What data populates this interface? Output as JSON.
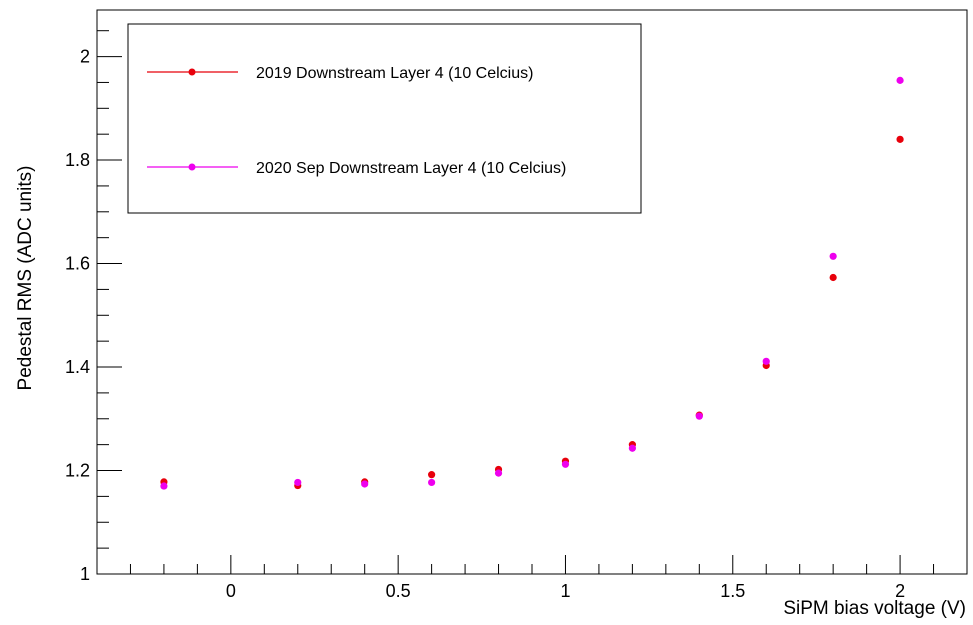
{
  "chart_data": {
    "type": "scatter",
    "xlabel": "SiPM bias voltage (V)",
    "ylabel": "Pedestal RMS (ADC units)",
    "xlim": [
      -0.4,
      2.2
    ],
    "ylim": [
      1.0,
      2.09
    ],
    "x_ticks": [
      0,
      0.5,
      1,
      1.5,
      2
    ],
    "x_tick_labels": [
      "0",
      "0.5",
      "1",
      "1.5",
      "2"
    ],
    "y_ticks": [
      1,
      1.2,
      1.4,
      1.6,
      1.8,
      2
    ],
    "y_tick_labels": [
      "1",
      "1.2",
      "1.4",
      "1.6",
      "1.8",
      "2"
    ],
    "grid": false,
    "legend_position": "top-left",
    "series": [
      {
        "name": "2019 Downstream Layer 4 (10 Celcius)",
        "color": "#e8000b",
        "x": [
          -0.2,
          0.2,
          0.4,
          0.6,
          0.8,
          1.0,
          1.2,
          1.4,
          1.6,
          1.8,
          2.0
        ],
        "y": [
          1.178,
          1.171,
          1.178,
          1.192,
          1.202,
          1.218,
          1.25,
          1.307,
          1.403,
          1.573,
          1.84
        ]
      },
      {
        "name": "2020 Sep Downstream Layer 4 (10 Celcius)",
        "color": "#ee00ee",
        "x": [
          -0.2,
          0.2,
          0.4,
          0.6,
          0.8,
          1.0,
          1.2,
          1.4,
          1.6,
          1.8,
          2.0
        ],
        "y": [
          1.17,
          1.177,
          1.174,
          1.177,
          1.195,
          1.212,
          1.243,
          1.305,
          1.411,
          1.614,
          1.954
        ]
      }
    ]
  }
}
